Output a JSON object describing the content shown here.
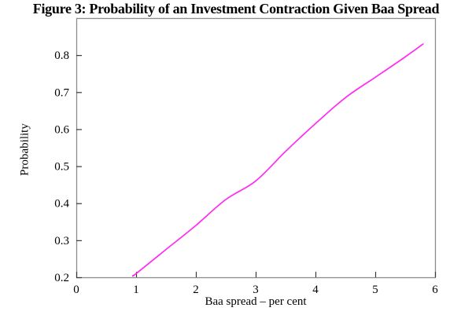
{
  "title": "Figure 3: Probability of an Investment Contraction Given Baa Spread",
  "chart_data": {
    "type": "line",
    "title": "Figure 3: Probability of an Investment Contraction Given Baa Spread",
    "xlabel": "Baa spread – per cent",
    "ylabel": "Probability",
    "xlim": [
      0,
      6
    ],
    "ylim": [
      0.2,
      0.9
    ],
    "x_ticks": [
      0,
      1,
      2,
      3,
      4,
      5,
      6
    ],
    "y_ticks": [
      0.2,
      0.3,
      0.4,
      0.5,
      0.6,
      0.7,
      0.8
    ],
    "grid": false,
    "legend": "none",
    "colors": {
      "line": "#ff2bf0",
      "frame": "#8c8c8c",
      "tick": "#3a3a3a",
      "text": "#000000"
    },
    "series": [
      {
        "name": "Probability of investment contraction",
        "color": "#ff2bf0",
        "x": [
          0.95,
          1.0,
          1.5,
          2.0,
          2.5,
          3.0,
          3.5,
          4.0,
          4.5,
          5.0,
          5.5,
          5.8
        ],
        "y": [
          0.205,
          0.21,
          0.275,
          0.34,
          0.41,
          0.46,
          0.54,
          0.615,
          0.685,
          0.74,
          0.795,
          0.83
        ]
      }
    ]
  }
}
